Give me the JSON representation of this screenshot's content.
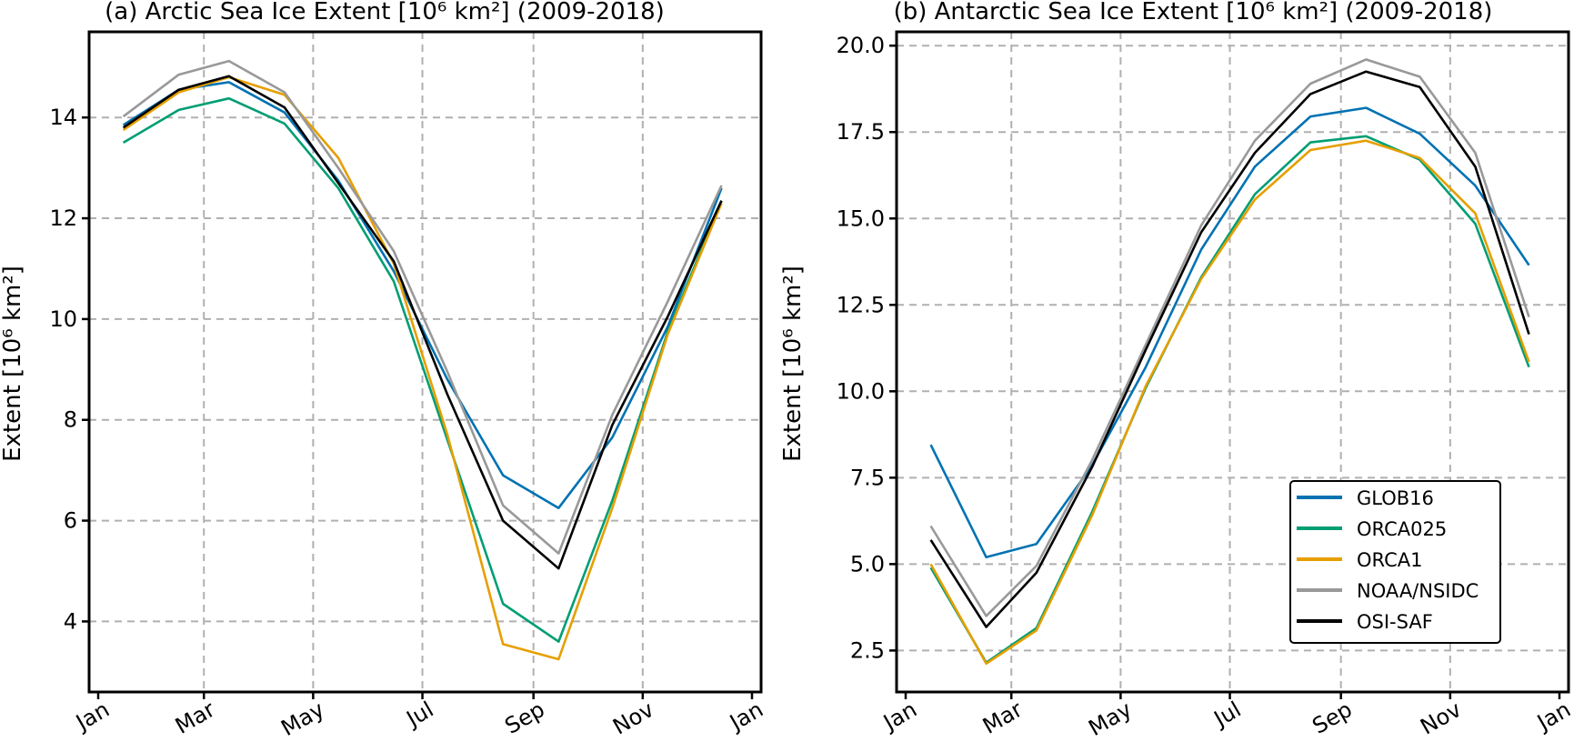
{
  "chart_data": [
    {
      "type": "line",
      "title": "(a) Arctic Sea Ice Extent [10⁶ km²] (2009-2018)",
      "xlabel": "",
      "ylabel": "Extent [10⁶ km²]",
      "x": [
        "2018-01-15",
        "2018-02-15",
        "2018-03-15",
        "2018-04-15",
        "2018-05-15",
        "2018-06-15",
        "2018-07-15",
        "2018-08-15",
        "2018-09-15",
        "2018-10-15",
        "2018-11-15",
        "2018-12-15"
      ],
      "xticks": [
        "Jan",
        "Mar",
        "May",
        "Jul",
        "Sep",
        "Nov",
        "Jan"
      ],
      "yticks": [
        "4",
        "6",
        "8",
        "10",
        "12",
        "14"
      ],
      "ylim": [
        2.6,
        15.7
      ],
      "grid": true,
      "series": [
        {
          "name": "GLOB16",
          "color": "#0072b2",
          "values": [
            13.85,
            14.55,
            14.7,
            14.1,
            12.75,
            10.95,
            8.8,
            6.9,
            6.25,
            7.65,
            9.85,
            12.6
          ]
        },
        {
          "name": "ORCA025",
          "color": "#009e73",
          "values": [
            13.5,
            14.15,
            14.38,
            13.88,
            12.6,
            10.75,
            7.6,
            4.35,
            3.6,
            6.4,
            9.75,
            12.35
          ]
        },
        {
          "name": "ORCA1",
          "color": "#e69f00",
          "values": [
            13.75,
            14.5,
            14.8,
            14.45,
            13.2,
            11.1,
            7.7,
            3.55,
            3.25,
            6.25,
            9.7,
            12.3
          ]
        },
        {
          "name": "NOAA/NSIDC",
          "color": "#999999",
          "values": [
            14.02,
            14.85,
            15.12,
            14.5,
            13.0,
            11.35,
            8.95,
            6.3,
            5.35,
            8.1,
            10.35,
            12.65
          ]
        },
        {
          "name": "OSI-SAF",
          "color": "#000000",
          "values": [
            13.8,
            14.55,
            14.82,
            14.2,
            12.7,
            11.15,
            8.5,
            6.0,
            5.05,
            7.9,
            10.05,
            12.35
          ]
        }
      ]
    },
    {
      "type": "line",
      "title": "(b) Antarctic Sea Ice Extent [10⁶ km²] (2009-2018)",
      "xlabel": "",
      "ylabel": "Extent [10⁶ km²]",
      "x": [
        "2018-01-15",
        "2018-02-15",
        "2018-03-15",
        "2018-04-15",
        "2018-05-15",
        "2018-06-15",
        "2018-07-15",
        "2018-08-15",
        "2018-09-15",
        "2018-10-15",
        "2018-11-15",
        "2018-12-15"
      ],
      "xticks": [
        "Jan",
        "Mar",
        "May",
        "Jul",
        "Sep",
        "Nov",
        "Jan"
      ],
      "yticks": [
        "2.5",
        "5.0",
        "7.5",
        "10.0",
        "12.5",
        "15.0",
        "17.5",
        "20.0"
      ],
      "ylim": [
        1.3,
        20.4
      ],
      "grid": true,
      "legend": "lower-right",
      "series": [
        {
          "name": "GLOB16",
          "color": "#0072b2",
          "values": [
            8.45,
            5.2,
            5.58,
            7.85,
            10.7,
            14.1,
            16.5,
            17.95,
            18.2,
            17.45,
            15.95,
            13.65
          ]
        },
        {
          "name": "ORCA025",
          "color": "#009e73",
          "values": [
            4.9,
            2.15,
            3.15,
            6.5,
            10.1,
            13.3,
            15.7,
            17.2,
            17.38,
            16.7,
            14.85,
            10.7
          ]
        },
        {
          "name": "ORCA1",
          "color": "#e69f00",
          "values": [
            5.0,
            2.12,
            3.08,
            6.4,
            10.15,
            13.25,
            15.55,
            16.98,
            17.25,
            16.75,
            15.15,
            10.85
          ]
        },
        {
          "name": "NOAA/NSIDC",
          "color": "#999999",
          "values": [
            6.1,
            3.5,
            4.95,
            8.0,
            11.35,
            14.8,
            17.25,
            18.9,
            19.6,
            19.1,
            16.9,
            12.15
          ]
        },
        {
          "name": "OSI-SAF",
          "color": "#000000",
          "values": [
            5.7,
            3.18,
            4.75,
            7.8,
            11.2,
            14.6,
            16.9,
            18.6,
            19.25,
            18.8,
            16.5,
            11.65
          ]
        }
      ]
    }
  ]
}
